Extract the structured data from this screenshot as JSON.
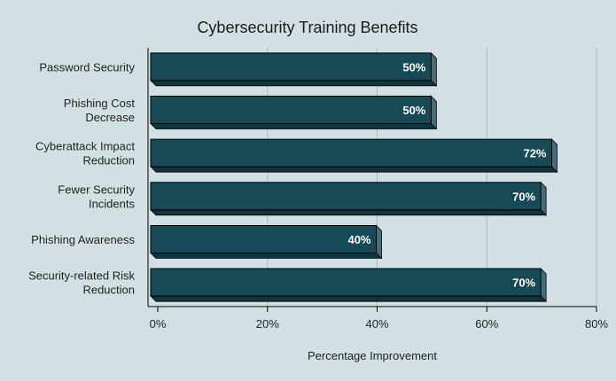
{
  "chart_data": {
    "type": "bar",
    "orientation": "horizontal",
    "title": "Cybersecurity Training Benefits",
    "xlabel": "Percentage Improvement",
    "ylabel": "",
    "xlim": [
      0,
      80
    ],
    "xticks": [
      0,
      20,
      40,
      60,
      80
    ],
    "tick_format": "{v}%",
    "categories": [
      [
        "Password Security"
      ],
      [
        "Phishing Cost",
        "Decrease"
      ],
      [
        "Cyberattack Impact",
        "Reduction"
      ],
      [
        "Fewer Security",
        "Incidents"
      ],
      [
        "Phishing Awareness"
      ],
      [
        "Security-related Risk",
        "Reduction"
      ]
    ],
    "values": [
      50,
      50,
      72,
      70,
      40,
      70
    ],
    "data_labels": [
      "50%",
      "50%",
      "72%",
      "70%",
      "40%",
      "70%"
    ],
    "grid": "vertical",
    "legend": "none",
    "colors": {
      "bar": "#174a57",
      "bar_side": "#3f6f7b",
      "bar_bottom": "#0f3540",
      "bar_stroke": "#000000",
      "grid": "#aab7b9",
      "background": "#d3e0e3"
    }
  }
}
